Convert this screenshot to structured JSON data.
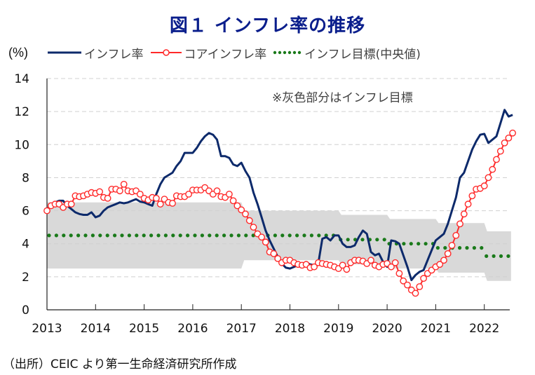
{
  "title": "図１ インフレ率の推移",
  "legend": {
    "unit": "(%)",
    "items": [
      {
        "label": "インフレ率",
        "color": "#0d2a6b",
        "style": "line"
      },
      {
        "label": "コアインフレ率",
        "color": "#ff2a2a",
        "style": "line-marker"
      },
      {
        "label": "インフレ目標(中央値)",
        "color": "#1a7a1a",
        "style": "dotted"
      }
    ]
  },
  "note": "※灰色部分はインフレ目標",
  "source": "（出所）CEIC より第一生命経済研究所作成",
  "chart_data": {
    "type": "line",
    "title": "図１ インフレ率の推移",
    "ylabel": "(%)",
    "ylim": [
      0,
      14
    ],
    "yticks": [
      "0",
      "2",
      "4",
      "6",
      "8",
      "10",
      "12",
      "14"
    ],
    "xlim": [
      2013.0,
      2022.55
    ],
    "xticks": [
      "2013",
      "2014",
      "2015",
      "2016",
      "2017",
      "2018",
      "2019",
      "2020",
      "2021",
      "2022"
    ],
    "grid": true,
    "frequency": "monthly",
    "start": "2013-01",
    "series": [
      {
        "name": "インフレ率",
        "values": [
          6.1,
          6.3,
          6.5,
          6.6,
          6.6,
          6.3,
          6.1,
          5.9,
          5.8,
          5.75,
          5.75,
          5.9,
          5.6,
          5.7,
          6.0,
          6.2,
          6.3,
          6.4,
          6.5,
          6.45,
          6.5,
          6.6,
          6.7,
          6.55,
          6.5,
          6.4,
          6.3,
          7.0,
          7.6,
          8.0,
          8.15,
          8.3,
          8.7,
          9.0,
          9.5,
          9.5,
          9.5,
          9.8,
          10.2,
          10.5,
          10.7,
          10.6,
          10.3,
          9.3,
          9.3,
          9.2,
          8.8,
          8.7,
          8.9,
          8.4,
          8.0,
          7.1,
          6.4,
          5.6,
          4.8,
          4.2,
          3.7,
          3.2,
          2.8,
          2.55,
          2.5,
          2.6,
          2.7,
          2.75,
          2.85,
          2.75,
          2.7,
          2.8,
          4.3,
          4.4,
          4.2,
          4.5,
          4.5,
          4.0,
          3.8,
          3.8,
          3.9,
          4.4,
          4.8,
          4.6,
          3.5,
          3.3,
          3.4,
          2.9,
          2.6,
          4.2,
          4.15,
          4.0,
          3.3,
          2.6,
          1.8,
          2.1,
          2.3,
          2.4,
          3.0,
          3.6,
          4.2,
          4.4,
          4.6,
          5.2,
          6.0,
          6.8,
          8.0,
          8.3,
          9.0,
          9.7,
          10.2,
          10.6,
          10.65,
          10.1,
          10.3,
          10.5,
          11.3,
          12.1,
          11.7,
          11.8
        ],
        "color": "#0d2a6b"
      },
      {
        "name": "コアインフレ率",
        "values": [
          6.0,
          6.3,
          6.4,
          6.4,
          6.2,
          6.4,
          6.4,
          6.9,
          6.85,
          6.9,
          7.0,
          7.1,
          7.05,
          7.15,
          6.8,
          6.75,
          7.3,
          7.3,
          7.2,
          7.6,
          7.2,
          7.15,
          7.2,
          7.0,
          6.75,
          6.65,
          6.8,
          6.75,
          6.4,
          6.7,
          6.5,
          6.45,
          6.9,
          6.85,
          6.85,
          7.0,
          7.25,
          7.25,
          7.25,
          7.4,
          7.2,
          7.0,
          7.2,
          6.85,
          6.8,
          7.0,
          6.6,
          6.3,
          6.05,
          5.8,
          5.4,
          5.0,
          4.6,
          4.4,
          4.1,
          3.5,
          3.4,
          3.1,
          2.85,
          3.0,
          3.0,
          2.85,
          2.75,
          2.7,
          2.75,
          2.55,
          2.6,
          2.85,
          2.8,
          2.75,
          2.7,
          2.6,
          2.5,
          2.7,
          2.45,
          2.85,
          3.0,
          3.0,
          2.95,
          2.8,
          3.0,
          2.7,
          2.6,
          2.75,
          2.8,
          2.6,
          2.85,
          2.2,
          1.75,
          1.5,
          1.2,
          1.0,
          1.4,
          1.9,
          2.2,
          2.4,
          2.6,
          2.75,
          3.0,
          3.4,
          3.9,
          4.5,
          5.2,
          5.8,
          6.4,
          6.9,
          7.3,
          7.35,
          7.5,
          8.0,
          8.5,
          9.1,
          9.6,
          10.1,
          10.4,
          10.7
        ],
        "color": "#ff2a2a"
      },
      {
        "name": "インフレ目標(中央値)",
        "segments": [
          {
            "from": 2013.0,
            "to": 2019.0,
            "value": 4.5
          },
          {
            "from": 2019.0,
            "to": 2020.0,
            "value": 4.25
          },
          {
            "from": 2020.0,
            "to": 2021.0,
            "value": 4.0
          },
          {
            "from": 2021.0,
            "to": 2022.0,
            "value": 3.75
          },
          {
            "from": 2022.0,
            "to": 2022.55,
            "value": 3.25
          }
        ],
        "color": "#1a7a1a"
      }
    ],
    "target_band": {
      "color": "#d9d9d9",
      "segments": [
        {
          "from": 2013.0,
          "to": 2017.0,
          "low": 2.5,
          "high": 6.5
        },
        {
          "from": 2017.0,
          "to": 2019.0,
          "low": 3.0,
          "high": 6.0
        },
        {
          "from": 2019.0,
          "to": 2020.0,
          "low": 2.75,
          "high": 5.75
        },
        {
          "from": 2020.0,
          "to": 2021.0,
          "low": 2.5,
          "high": 5.5
        },
        {
          "from": 2021.0,
          "to": 2022.0,
          "low": 2.25,
          "high": 5.25
        },
        {
          "from": 2022.0,
          "to": 2022.55,
          "low": 1.75,
          "high": 4.75
        }
      ]
    }
  }
}
